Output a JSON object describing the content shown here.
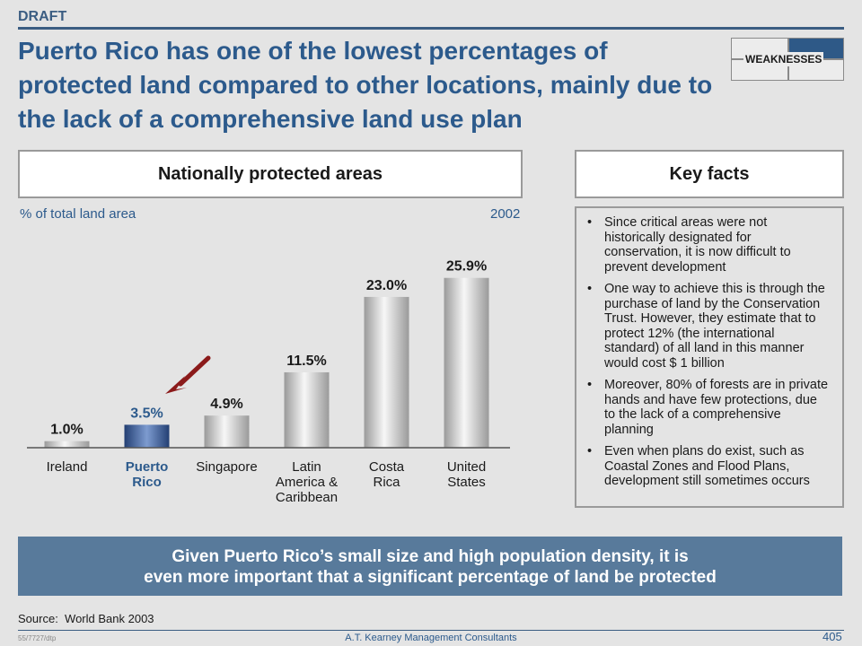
{
  "header": {
    "draft": "DRAFT",
    "title": "Puerto Rico has one of the lowest percentages of protected land compared to other locations, mainly due to the lack of a comprehensive land use plan",
    "tag": "WEAKNESSES"
  },
  "left_panel": {
    "heading": "Nationally protected areas",
    "unit": "% of total land area",
    "year": "2002"
  },
  "chart_data": {
    "type": "bar",
    "title": "Nationally protected areas",
    "ylabel": "% of total land area",
    "categories": [
      "Ireland",
      "Puerto Rico",
      "Singapore",
      "Latin America & Caribbean",
      "Costa Rica",
      "United States"
    ],
    "category_lines": [
      [
        "Ireland"
      ],
      [
        "Puerto",
        "Rico"
      ],
      [
        "Singapore"
      ],
      [
        "Latin",
        "America &",
        "Caribbean"
      ],
      [
        "Costa",
        "Rica"
      ],
      [
        "United",
        "States"
      ]
    ],
    "values": [
      1.0,
      3.5,
      4.9,
      11.5,
      23.0,
      25.9
    ],
    "labels": [
      "1.0%",
      "3.5%",
      "4.9%",
      "11.5%",
      "23.0%",
      "25.9%"
    ],
    "highlight_index": 1,
    "ylim": [
      0,
      26
    ],
    "grid": false,
    "colors": {
      "bar": "#d9d9d9",
      "highlight": "#4a6fa8",
      "highlight_text": "#2c5a8c",
      "arrow": "#8b1a1a"
    }
  },
  "key_facts": {
    "heading": "Key facts",
    "bullet": "•",
    "items": [
      "Since critical areas were not historically designated for conservation, it is now difficult to prevent development",
      "One way to achieve this is through the purchase of land by the Conservation Trust. However, they estimate that to protect 12% (the international standard) of all land in this manner would cost $ 1 billion",
      "Moreover, 80% of forests are in private hands and have few protections, due to the lack of a comprehensive planning",
      "Even when plans do exist, such as Coastal Zones and Flood Plans, development still sometimes occurs"
    ]
  },
  "callout": {
    "line1": "Given Puerto Rico’s small size and high population density, it is",
    "line2": "even more important that a significant percentage of land be protected"
  },
  "footer": {
    "source_label": "Source:",
    "source_value": "World Bank 2003",
    "doc_id": "55/7727/dtp",
    "firm": "A.T. Kearney Management Consultants",
    "page": "405"
  }
}
